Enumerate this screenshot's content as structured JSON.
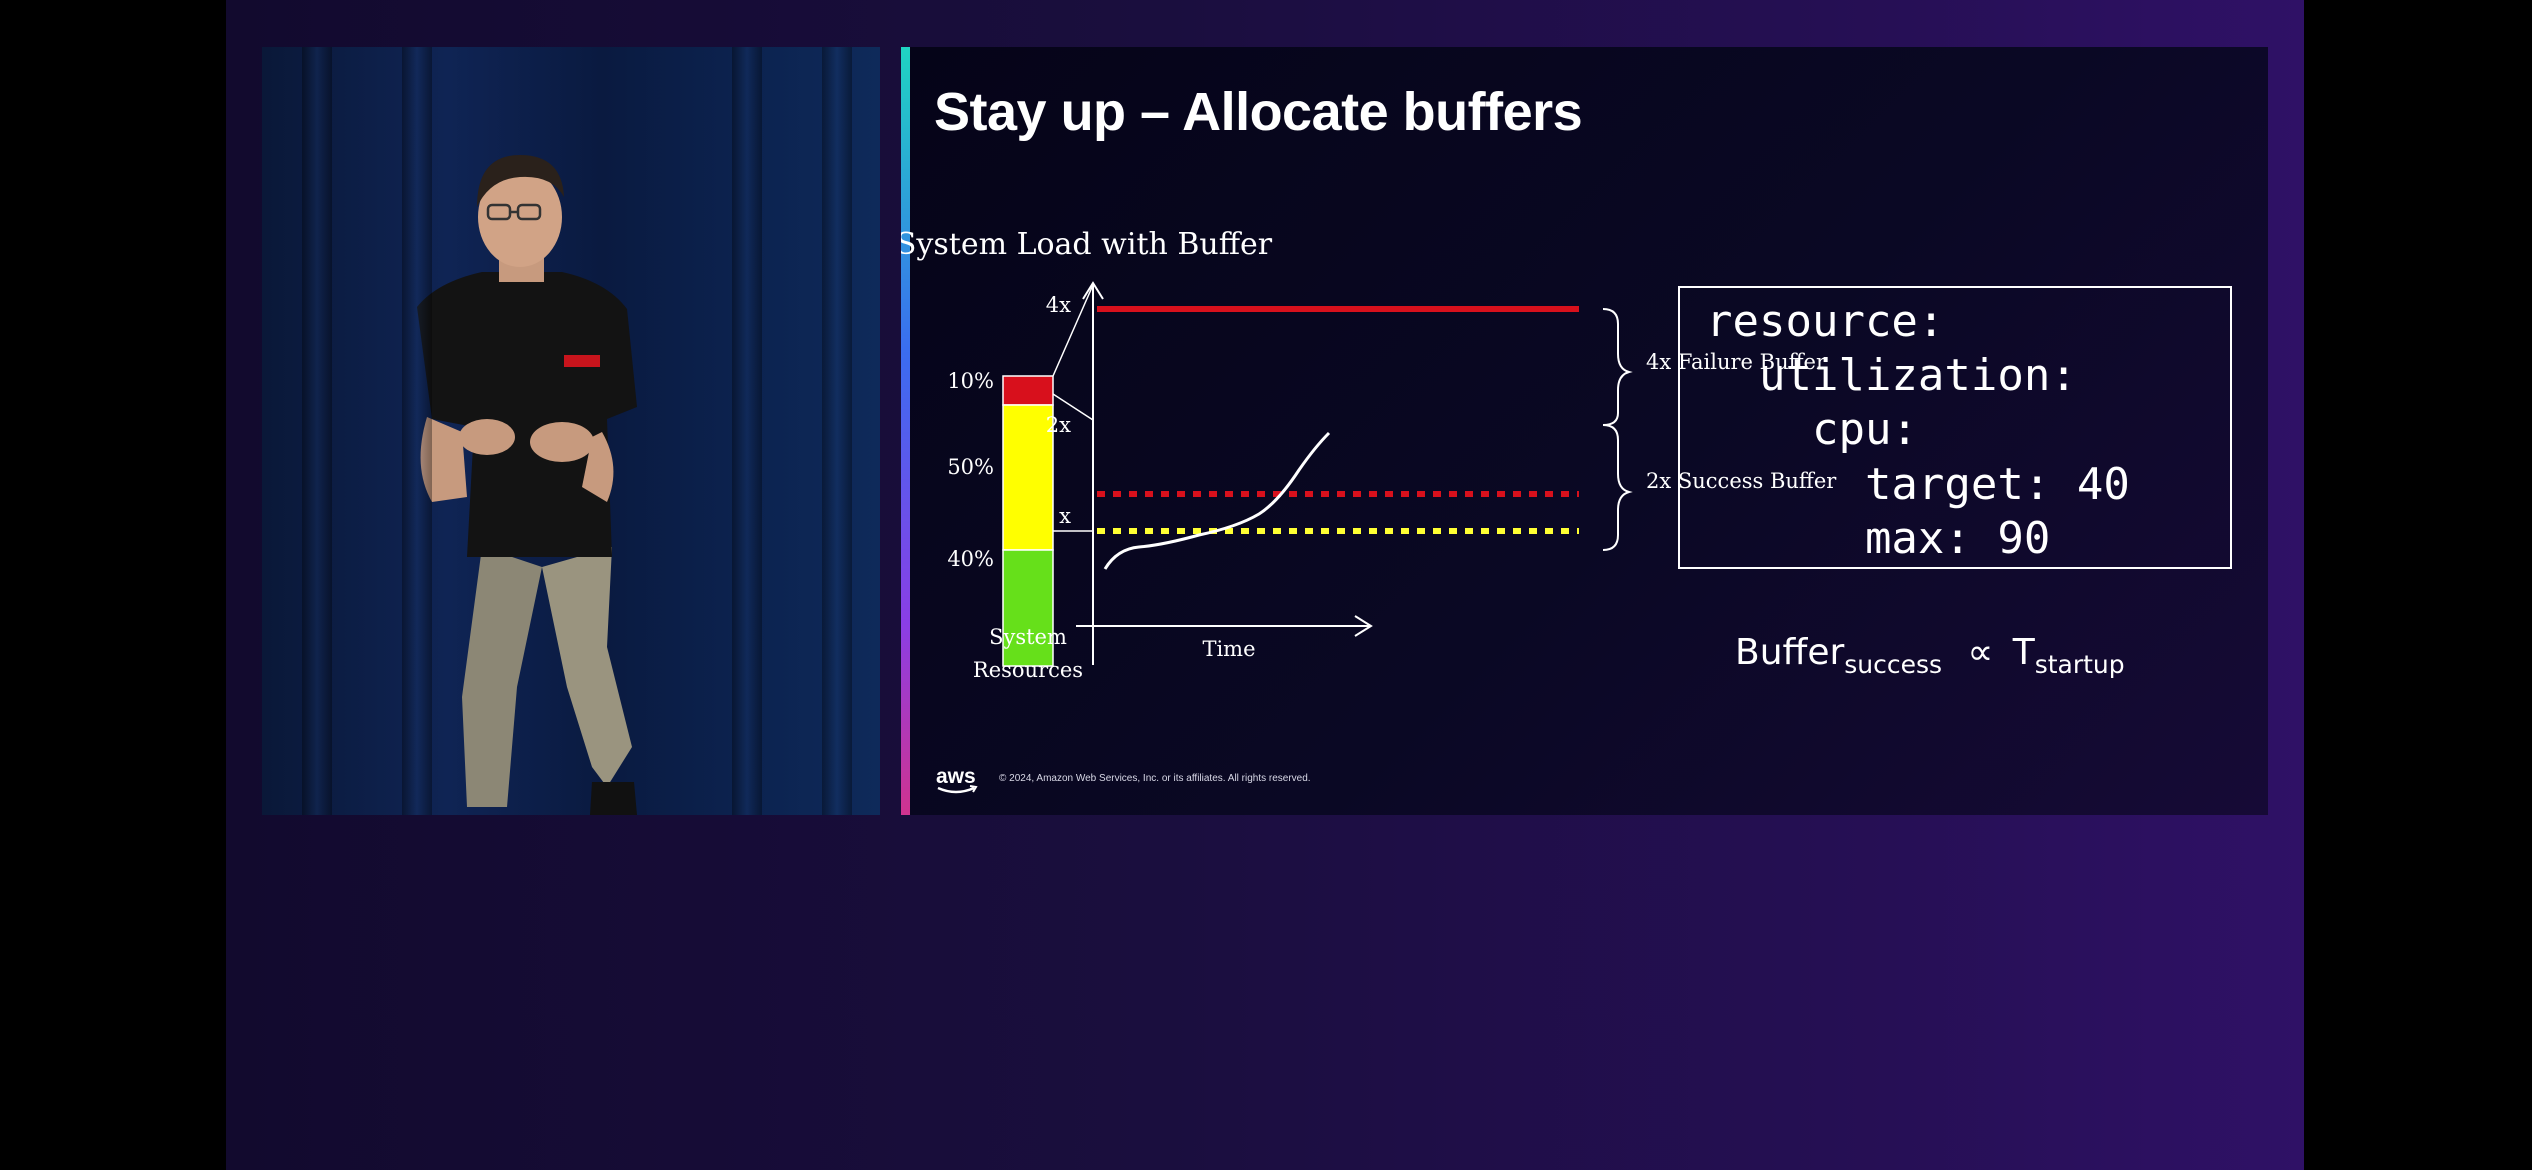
{
  "slide": {
    "title": "Stay up – Allocate buffers",
    "copyright": "© 2024, Amazon Web Services, Inc. or its affiliates. All rights reserved.",
    "logo_text": "aws"
  },
  "chart_data": {
    "type": "line",
    "title": "System Load with Buffer",
    "xlabel": "Time",
    "resource_bar": {
      "label_line1": "System",
      "label_line2": "Resources",
      "segments": [
        {
          "label": "10%",
          "value": 10,
          "color": "#d8101c"
        },
        {
          "label": "50%",
          "value": 50,
          "color": "#ffff00"
        },
        {
          "label": "40%",
          "value": 40,
          "color": "#66e01a"
        }
      ]
    },
    "levels": [
      {
        "label": "4x",
        "multiple": 4,
        "style": "solid",
        "color": "#d8101c"
      },
      {
        "label": "2x",
        "multiple": 2,
        "style": "dotted",
        "color": "#d8101c"
      },
      {
        "label": "x",
        "multiple": 1,
        "style": "dotted",
        "color": "#ffff33"
      }
    ],
    "braces": [
      {
        "label": "4x Failure Buffer"
      },
      {
        "label": "2x Success Buffer"
      }
    ],
    "load_curve_color": "#ffffff"
  },
  "code": {
    "lines": [
      "resource:",
      "  utilization:",
      "    cpu:",
      "      target: 40",
      "      max: 90"
    ]
  },
  "formula": {
    "buffer": "Buffer",
    "buffer_sub": "success",
    "symbol": "∝",
    "t": "T",
    "t_sub": "startup"
  },
  "colors": {
    "stage_bg": "#1a0e3e",
    "slide_bg": "#050418",
    "accent_gradient": [
      "#1fd4c2",
      "#3b6cf0",
      "#8a3ee6",
      "#d0338f"
    ]
  }
}
